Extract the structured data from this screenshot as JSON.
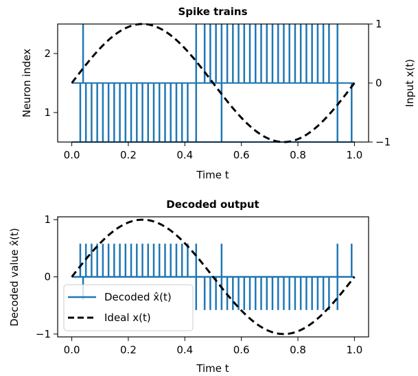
{
  "colors": {
    "spike": "#1f77b4",
    "ideal": "#000000",
    "axes": "#000000",
    "background": "#ffffff"
  },
  "chart_data": [
    {
      "type": "line",
      "title": "Spike trains",
      "xlabel": "Time t",
      "ylabel": "Neuron index",
      "ylabel_right": "Input x(t)",
      "xlim": [
        -0.05,
        1.05
      ],
      "ylim": [
        0.5,
        2.5
      ],
      "ylim_right": [
        -1,
        1
      ],
      "xticks": [
        "0.0",
        "0.2",
        "0.4",
        "0.6",
        "0.8",
        "1.0"
      ],
      "yticks": [
        "1",
        "2"
      ],
      "yticks_right": [
        "−1",
        "0",
        "1"
      ],
      "grid": false,
      "series": [
        {
          "kind": "spike_raster",
          "neuron": 1,
          "baseline": 0.5,
          "top": 1.5,
          "spike_times": [
            0.03,
            0.05,
            0.07,
            0.09,
            0.11,
            0.13,
            0.15,
            0.17,
            0.19,
            0.21,
            0.23,
            0.25,
            0.27,
            0.29,
            0.31,
            0.33,
            0.35,
            0.37,
            0.39,
            0.41,
            0.44,
            0.53,
            0.94,
            0.99
          ]
        },
        {
          "kind": "spike_raster",
          "neuron": 2,
          "baseline": 1.5,
          "top": 2.5,
          "spike_times": [
            0.04,
            0.44,
            0.47,
            0.49,
            0.51,
            0.53,
            0.55,
            0.57,
            0.59,
            0.61,
            0.63,
            0.65,
            0.67,
            0.69,
            0.71,
            0.73,
            0.75,
            0.77,
            0.79,
            0.81,
            0.83,
            0.85,
            0.87,
            0.89,
            0.91,
            0.94
          ]
        },
        {
          "kind": "ideal_input",
          "axis": "right",
          "function": "sin(2*pi*t)",
          "x": [
            0.0,
            0.05,
            0.1,
            0.15,
            0.2,
            0.25,
            0.3,
            0.35,
            0.4,
            0.45,
            0.5,
            0.55,
            0.6,
            0.65,
            0.7,
            0.75,
            0.8,
            0.85,
            0.9,
            0.95,
            1.0
          ],
          "y": [
            0.0,
            0.309,
            0.588,
            0.809,
            0.951,
            1.0,
            0.951,
            0.809,
            0.588,
            0.309,
            0.0,
            -0.309,
            -0.588,
            -0.809,
            -0.951,
            -1.0,
            -0.951,
            -0.809,
            -0.588,
            -0.309,
            0.0
          ]
        }
      ]
    },
    {
      "type": "line",
      "title": "Decoded output",
      "xlabel": "Time t",
      "ylabel": "Decoded value x̂(t)",
      "xlim": [
        -0.05,
        1.05
      ],
      "ylim": [
        -1.05,
        1.05
      ],
      "xticks": [
        "0.0",
        "0.2",
        "0.4",
        "0.6",
        "0.8",
        "1.0"
      ],
      "yticks": [
        "−1",
        "0",
        "1"
      ],
      "grid": false,
      "legend": {
        "placement": "lower-left",
        "entries": [
          "Decoded x̂(t)",
          "Ideal x(t)"
        ]
      },
      "series": [
        {
          "name": "Decoded x̂(t)",
          "kind": "decoded_spikes",
          "spikes": [
            {
              "t": 0.03,
              "v": 0.58
            },
            {
              "t": 0.04,
              "v": -0.4
            },
            {
              "t": 0.05,
              "v": 0.58
            },
            {
              "t": 0.07,
              "v": 0.58
            },
            {
              "t": 0.09,
              "v": 0.58
            },
            {
              "t": 0.11,
              "v": 0.58
            },
            {
              "t": 0.13,
              "v": 0.58
            },
            {
              "t": 0.15,
              "v": 0.58
            },
            {
              "t": 0.17,
              "v": 0.58
            },
            {
              "t": 0.19,
              "v": 0.58
            },
            {
              "t": 0.21,
              "v": 0.58
            },
            {
              "t": 0.23,
              "v": 0.58
            },
            {
              "t": 0.25,
              "v": 0.58
            },
            {
              "t": 0.27,
              "v": 0.58
            },
            {
              "t": 0.29,
              "v": 0.58
            },
            {
              "t": 0.31,
              "v": 0.58
            },
            {
              "t": 0.33,
              "v": 0.58
            },
            {
              "t": 0.35,
              "v": 0.58
            },
            {
              "t": 0.37,
              "v": 0.58
            },
            {
              "t": 0.39,
              "v": 0.58
            },
            {
              "t": 0.41,
              "v": 0.58
            },
            {
              "t": 0.44,
              "v": 0.58
            },
            {
              "t": 0.44,
              "v": -0.58
            },
            {
              "t": 0.47,
              "v": -0.58
            },
            {
              "t": 0.49,
              "v": -0.58
            },
            {
              "t": 0.51,
              "v": -0.58
            },
            {
              "t": 0.53,
              "v": 0.58
            },
            {
              "t": 0.53,
              "v": -0.58
            },
            {
              "t": 0.55,
              "v": -0.58
            },
            {
              "t": 0.57,
              "v": -0.58
            },
            {
              "t": 0.59,
              "v": -0.58
            },
            {
              "t": 0.61,
              "v": -0.58
            },
            {
              "t": 0.63,
              "v": -0.58
            },
            {
              "t": 0.65,
              "v": -0.58
            },
            {
              "t": 0.67,
              "v": -0.58
            },
            {
              "t": 0.69,
              "v": -0.58
            },
            {
              "t": 0.71,
              "v": -0.58
            },
            {
              "t": 0.73,
              "v": -0.58
            },
            {
              "t": 0.75,
              "v": -0.58
            },
            {
              "t": 0.77,
              "v": -0.58
            },
            {
              "t": 0.79,
              "v": -0.58
            },
            {
              "t": 0.81,
              "v": -0.58
            },
            {
              "t": 0.83,
              "v": -0.58
            },
            {
              "t": 0.85,
              "v": -0.58
            },
            {
              "t": 0.87,
              "v": -0.58
            },
            {
              "t": 0.89,
              "v": -0.58
            },
            {
              "t": 0.91,
              "v": -0.58
            },
            {
              "t": 0.94,
              "v": 0.58
            },
            {
              "t": 0.94,
              "v": -0.58
            },
            {
              "t": 0.99,
              "v": 0.58
            }
          ]
        },
        {
          "name": "Ideal x(t)",
          "kind": "ideal_input",
          "function": "sin(2*pi*t)",
          "x": [
            0.0,
            0.05,
            0.1,
            0.15,
            0.2,
            0.25,
            0.3,
            0.35,
            0.4,
            0.45,
            0.5,
            0.55,
            0.6,
            0.65,
            0.7,
            0.75,
            0.8,
            0.85,
            0.9,
            0.95,
            1.0
          ],
          "y": [
            0.0,
            0.309,
            0.588,
            0.809,
            0.951,
            1.0,
            0.951,
            0.809,
            0.588,
            0.309,
            0.0,
            -0.309,
            -0.588,
            -0.809,
            -0.951,
            -1.0,
            -0.951,
            -0.809,
            -0.588,
            -0.309,
            0.0
          ]
        }
      ]
    }
  ]
}
